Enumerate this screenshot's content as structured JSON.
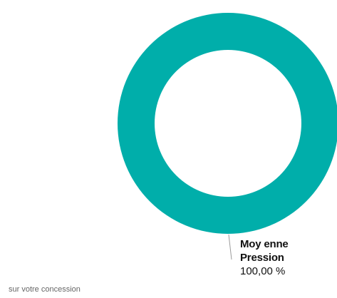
{
  "chart_data": {
    "type": "pie",
    "variant": "donut",
    "slices": [
      {
        "label_line1": "Moy enne",
        "label_line2": "Pression",
        "value_text": "100,00 %",
        "value": 100.0,
        "color": "#00AEAA"
      }
    ],
    "legend": "none"
  },
  "footnote": "sur votre concession",
  "colors": {
    "slice": "#00AEAA",
    "leader_line": "#999999",
    "background": "#FFFFFF"
  }
}
